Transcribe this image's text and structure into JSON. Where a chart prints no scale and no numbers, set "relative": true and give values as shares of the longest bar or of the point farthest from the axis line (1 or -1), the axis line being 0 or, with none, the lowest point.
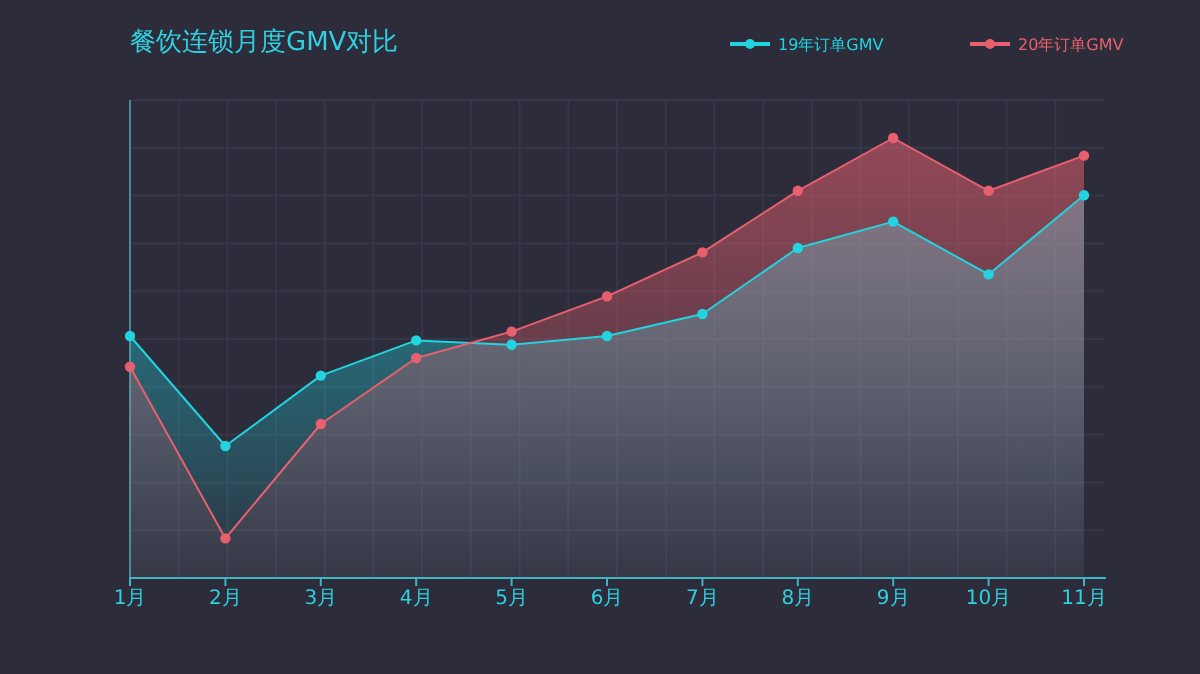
{
  "chart_data": {
    "type": "area",
    "title": "餐饮连锁月度GMV对比",
    "relative": true,
    "categories": [
      "1月",
      "2月",
      "3月",
      "4月",
      "5月",
      "6月",
      "7月",
      "8月",
      "9月",
      "10月",
      "11月"
    ],
    "series": [
      {
        "name": "19年订单GMV",
        "color": "#22d3e0",
        "values": [
          0.55,
          0.3,
          0.46,
          0.54,
          0.53,
          0.55,
          0.6,
          0.75,
          0.81,
          0.69,
          0.87
        ]
      },
      {
        "name": "20年订单GMV",
        "color": "#e8606e",
        "values": [
          0.48,
          0.09,
          0.35,
          0.5,
          0.56,
          0.64,
          0.74,
          0.88,
          1,
          0.88,
          0.96
        ]
      }
    ],
    "legend": "top right",
    "marker": "circle",
    "grid": true
  }
}
